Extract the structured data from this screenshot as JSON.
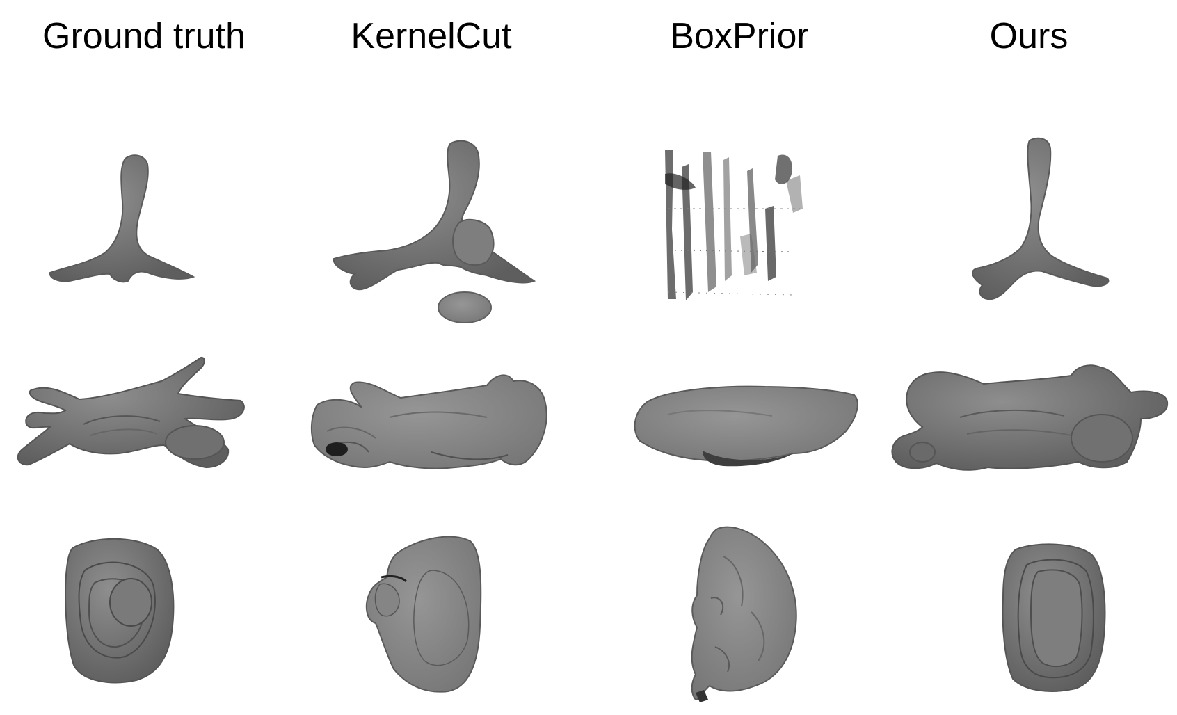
{
  "columns": [
    {
      "key": "gt",
      "title": "Ground truth"
    },
    {
      "key": "kernelcut",
      "title": "KernelCut"
    },
    {
      "key": "boxprior",
      "title": "BoxPrior"
    },
    {
      "key": "ours",
      "title": "Ours"
    }
  ],
  "colors": {
    "shape_fill": "#7a7a7a",
    "shape_dark": "#4d4d4d",
    "shape_light": "#9a9a9a",
    "background": "#ffffff"
  }
}
